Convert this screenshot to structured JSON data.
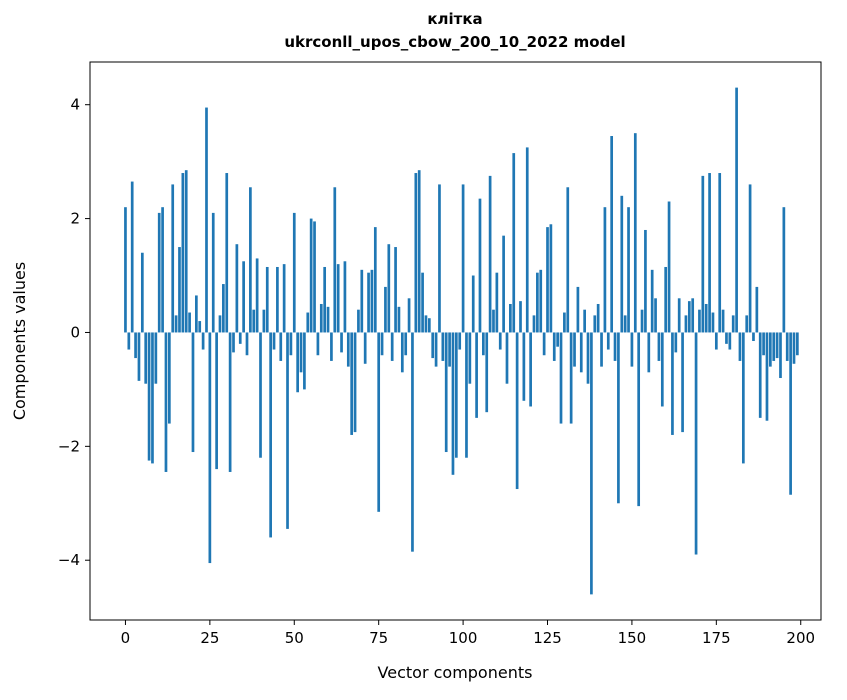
{
  "chart_data": {
    "type": "bar",
    "title": "клітка",
    "subtitle": "ukrconll_upos_cbow_200_10_2022 model",
    "xlabel": "Vector components",
    "ylabel": "Components values",
    "x_ticks": [
      0,
      25,
      50,
      75,
      100,
      125,
      150,
      175,
      200
    ],
    "y_ticks": [
      -4,
      -2,
      0,
      2,
      4
    ],
    "xlim": [
      -10.5,
      206
    ],
    "ylim": [
      -5.05,
      4.75
    ],
    "bar_color": "#1f77b4",
    "bar_width": 0.8,
    "grid": false,
    "legend": "none",
    "values": [
      2.2,
      -0.3,
      2.65,
      -0.45,
      -0.85,
      1.4,
      -0.9,
      -2.25,
      -2.3,
      -0.9,
      2.1,
      2.2,
      -2.45,
      -1.6,
      2.6,
      0.3,
      1.5,
      2.8,
      2.85,
      0.35,
      -2.1,
      0.65,
      0.2,
      -0.3,
      3.95,
      -4.05,
      2.1,
      -2.4,
      0.3,
      0.85,
      2.8,
      -2.45,
      -0.35,
      1.55,
      -0.2,
      1.25,
      -0.4,
      2.55,
      0.4,
      1.3,
      -2.2,
      0.4,
      1.15,
      -3.6,
      -0.3,
      1.15,
      -0.5,
      1.2,
      -3.45,
      -0.4,
      2.1,
      -1.05,
      -0.7,
      -1.0,
      0.35,
      2.0,
      1.95,
      -0.4,
      0.5,
      1.15,
      0.45,
      -0.5,
      2.55,
      1.2,
      -0.35,
      1.25,
      -0.6,
      -1.8,
      -1.75,
      0.4,
      1.1,
      -0.55,
      1.05,
      1.1,
      1.85,
      -3.15,
      -0.4,
      0.8,
      1.55,
      -0.5,
      1.5,
      0.45,
      -0.7,
      -0.4,
      0.6,
      -3.85,
      2.8,
      2.85,
      1.05,
      0.3,
      0.25,
      -0.45,
      -0.6,
      2.6,
      -0.5,
      -2.1,
      -0.6,
      -2.5,
      -2.2,
      -0.3,
      2.6,
      -2.2,
      -0.9,
      1.0,
      -1.5,
      2.35,
      -0.4,
      -1.4,
      2.75,
      0.4,
      1.05,
      -0.3,
      1.7,
      -0.9,
      0.5,
      3.15,
      -2.75,
      0.55,
      -1.2,
      3.25,
      -1.3,
      0.3,
      1.05,
      1.1,
      -0.4,
      1.85,
      1.9,
      -0.5,
      -0.25,
      -1.6,
      0.35,
      2.55,
      -1.6,
      -0.6,
      0.8,
      -0.7,
      0.4,
      -0.9,
      -4.6,
      0.3,
      0.5,
      -0.6,
      2.2,
      -0.3,
      3.45,
      -0.5,
      -3.0,
      2.4,
      0.3,
      2.2,
      -0.6,
      3.5,
      -3.05,
      0.4,
      1.8,
      -0.7,
      1.1,
      0.6,
      -0.5,
      -1.3,
      1.15,
      2.3,
      -1.8,
      -0.35,
      0.6,
      -1.75,
      0.3,
      0.55,
      0.6,
      -3.9,
      0.4,
      2.75,
      0.5,
      2.8,
      0.35,
      -0.3,
      2.8,
      0.4,
      -0.2,
      -0.3,
      0.3,
      4.3,
      -0.5,
      -2.3,
      0.3,
      2.6,
      -0.15,
      0.8,
      -1.5,
      -0.4,
      -1.55,
      -0.6,
      -0.5,
      -0.45,
      -0.8,
      2.2,
      -0.5,
      -2.85,
      -0.55,
      -0.4
    ]
  }
}
